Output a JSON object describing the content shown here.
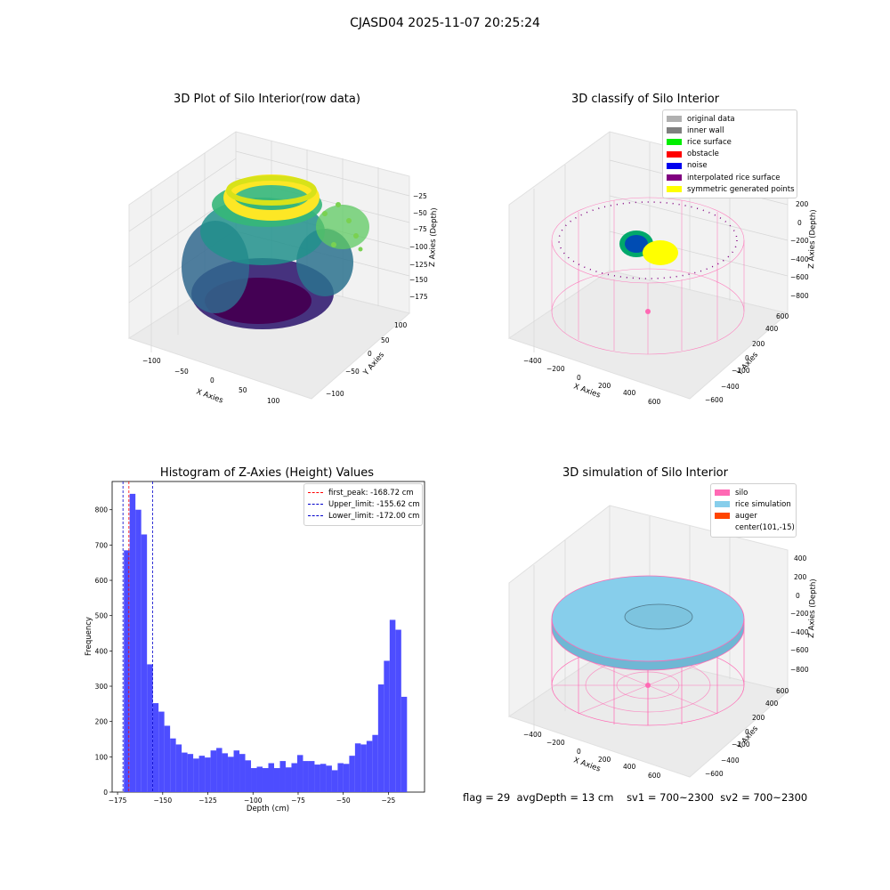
{
  "suptitle": "CJASD04 2025-11-07 20:25:24",
  "panel1": {
    "title": "3D Plot of Silo Interior(row data)",
    "xlabel": "X Axies",
    "ylabel": "Y Axies",
    "zlabel": "Z Axies (Depth)",
    "xticks": [
      "−100",
      "−50",
      "0",
      "50",
      "100"
    ],
    "yticks": [
      "−100",
      "−50",
      "0",
      "50",
      "100"
    ],
    "zticks": [
      "−25",
      "−50",
      "−75",
      "−100",
      "−125",
      "−150",
      "−175"
    ]
  },
  "panel2": {
    "title": "3D classify of Silo Interior",
    "xlabel": "X Axies",
    "ylabel": "Y Axies",
    "zlabel": "Z Axies (Depth)",
    "xticks": [
      "−400",
      "−200",
      "0",
      "200",
      "400",
      "600"
    ],
    "yticks": [
      "−600",
      "−400",
      "−200",
      "0",
      "200",
      "400",
      "600"
    ],
    "zticks": [
      "200",
      "0",
      "−200",
      "−400",
      "−600",
      "−800"
    ],
    "legend": [
      {
        "label": "original data",
        "color": "#b0b0b0"
      },
      {
        "label": "inner wall",
        "color": "#808080"
      },
      {
        "label": "rice surface",
        "color": "#00ee00"
      },
      {
        "label": "obstacle",
        "color": "#ff0000"
      },
      {
        "label": "noise",
        "color": "#0000ee"
      },
      {
        "label": "interpolated rice surface",
        "color": "#800080"
      },
      {
        "label": "symmetric generated points",
        "color": "#ffff00"
      }
    ]
  },
  "panel3": {
    "title": "Histogram of Z-Axies (Height) Values",
    "xlabel": "Depth (cm)",
    "ylabel": "Frequency",
    "xticks": [
      "−175",
      "−150",
      "−125",
      "−100",
      "−75",
      "−50",
      "−25"
    ],
    "yticks": [
      "0",
      "100",
      "200",
      "300",
      "400",
      "500",
      "600",
      "700",
      "800"
    ],
    "legend": [
      {
        "label": "first_peak: -168.72 cm",
        "color": "#ff0000"
      },
      {
        "label": "Upper_limit: -155.62 cm",
        "color": "#0000cc"
      },
      {
        "label": "Lower_limit: -172.00 cm",
        "color": "#0000cc"
      }
    ]
  },
  "panel4": {
    "title": "3D simulation of Silo Interior",
    "xlabel": "X Axies",
    "ylabel": "Y Axies",
    "zlabel": "Z Axies (Depth)",
    "xticks": [
      "−400",
      "−200",
      "0",
      "200",
      "400",
      "600"
    ],
    "yticks": [
      "−600",
      "−400",
      "−200",
      "0",
      "200",
      "400",
      "600"
    ],
    "zticks": [
      "400",
      "200",
      "0",
      "−200",
      "−400",
      "−600",
      "−800"
    ],
    "legend": [
      {
        "label": "silo",
        "color": "#ff69b4"
      },
      {
        "label": "rice simulation",
        "color": "#87ceeb"
      },
      {
        "label": "auger",
        "color": "#ff4500"
      },
      {
        "label": "center(101,-15)",
        "color": ""
      }
    ]
  },
  "footer": {
    "flag": "flag = 29",
    "avg": "avgDepth = 13 cm",
    "sv1": "sv1 = 700~2300",
    "sv2": "sv2 = 700~2300"
  },
  "chart_data": [
    {
      "type": "scatter",
      "title": "3D Plot of Silo Interior(row data)",
      "xlabel": "X Axies",
      "ylabel": "Y Axies",
      "zlabel": "Z Axies (Depth)",
      "xlim": [
        -125,
        125
      ],
      "ylim": [
        -125,
        125
      ],
      "zlim": [
        -185,
        -10
      ],
      "colormap": "viridis"
    },
    {
      "type": "scatter",
      "title": "3D classify of Silo Interior",
      "xlabel": "X Axies",
      "ylabel": "Y Axies",
      "zlabel": "Z Axies (Depth)",
      "xlim": [
        -500,
        700
      ],
      "ylim": [
        -700,
        700
      ],
      "zlim": [
        -900,
        300
      ],
      "series": [
        {
          "name": "original data"
        },
        {
          "name": "inner wall"
        },
        {
          "name": "rice surface"
        },
        {
          "name": "obstacle"
        },
        {
          "name": "noise"
        },
        {
          "name": "interpolated rice surface"
        },
        {
          "name": "symmetric generated points"
        }
      ]
    },
    {
      "type": "bar",
      "title": "Histogram of Z-Axies (Height) Values",
      "xlabel": "Depth (cm)",
      "ylabel": "Frequency",
      "xlim": [
        -178,
        -5
      ],
      "ylim": [
        0,
        880
      ],
      "bin_start": -171.5,
      "bin_width": 3.2,
      "values": [
        685,
        845,
        800,
        730,
        362,
        252,
        228,
        188,
        152,
        135,
        112,
        108,
        95,
        103,
        98,
        118,
        125,
        110,
        100,
        118,
        108,
        90,
        68,
        72,
        68,
        82,
        68,
        88,
        70,
        82,
        105,
        88,
        88,
        78,
        80,
        75,
        62,
        82,
        80,
        103,
        138,
        135,
        145,
        162,
        305,
        372,
        488,
        460,
        270
      ],
      "vlines": [
        {
          "name": "first_peak: -168.72 cm",
          "x": -168.72,
          "color": "#ff0000"
        },
        {
          "name": "Upper_limit: -155.62 cm",
          "x": -155.62,
          "color": "#0000cc"
        },
        {
          "name": "Lower_limit: -172.00 cm",
          "x": -172.0,
          "color": "#0000cc"
        }
      ]
    },
    {
      "type": "area",
      "title": "3D simulation of Silo Interior",
      "xlabel": "X Axies",
      "ylabel": "Y Axies",
      "zlabel": "Z Axies (Depth)",
      "xlim": [
        -500,
        700
      ],
      "ylim": [
        -700,
        700
      ],
      "zlim": [
        -900,
        500
      ],
      "series": [
        {
          "name": "silo"
        },
        {
          "name": "rice simulation"
        },
        {
          "name": "auger"
        },
        {
          "name": "center(101,-15)"
        }
      ]
    }
  ]
}
